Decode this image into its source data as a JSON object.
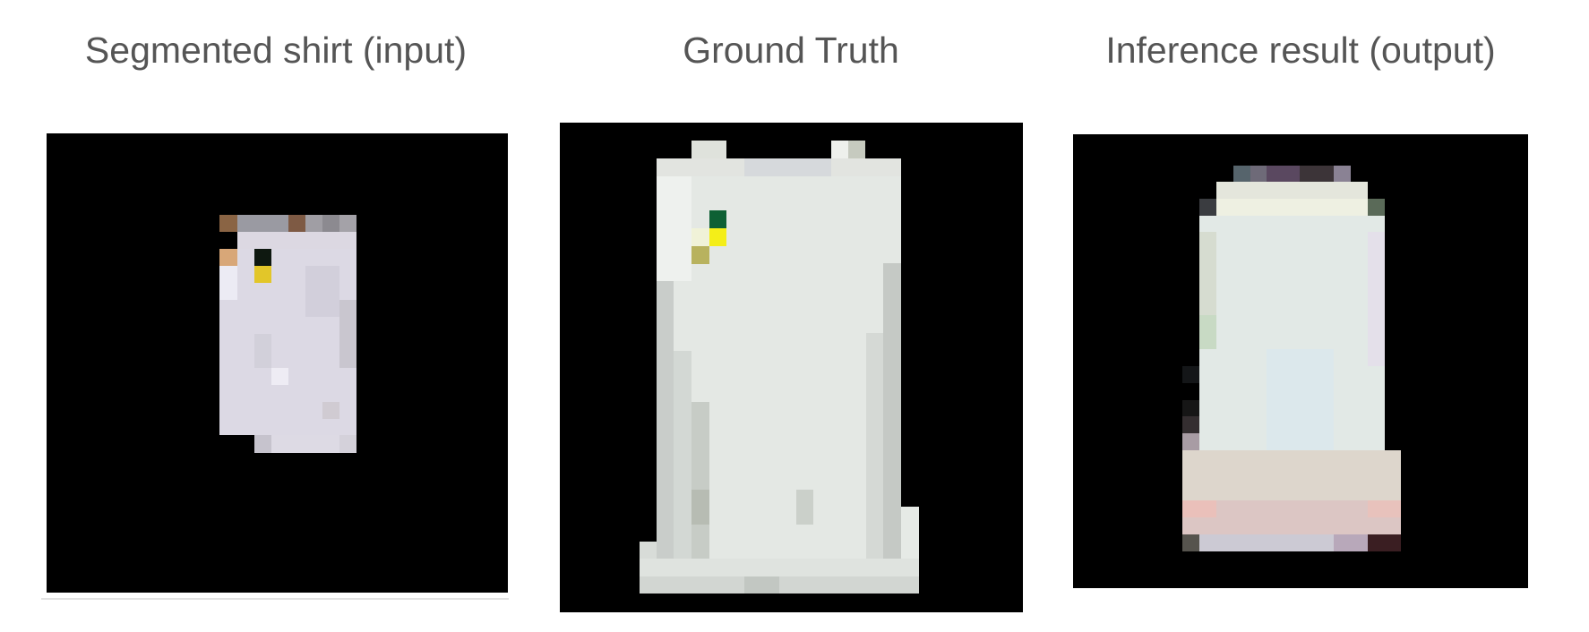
{
  "captions": {
    "input": "Segmented shirt (input)",
    "ground_truth": "Ground Truth",
    "output": "Inference result (output)"
  },
  "colors": {
    "background": "#ffffff",
    "panel_background": "#000000",
    "caption_text": "#555555",
    "input_shirt": "#dcd9e4",
    "ground_truth_shirt": "#e4e8e4",
    "output_shirt": "#e2e9e6"
  }
}
